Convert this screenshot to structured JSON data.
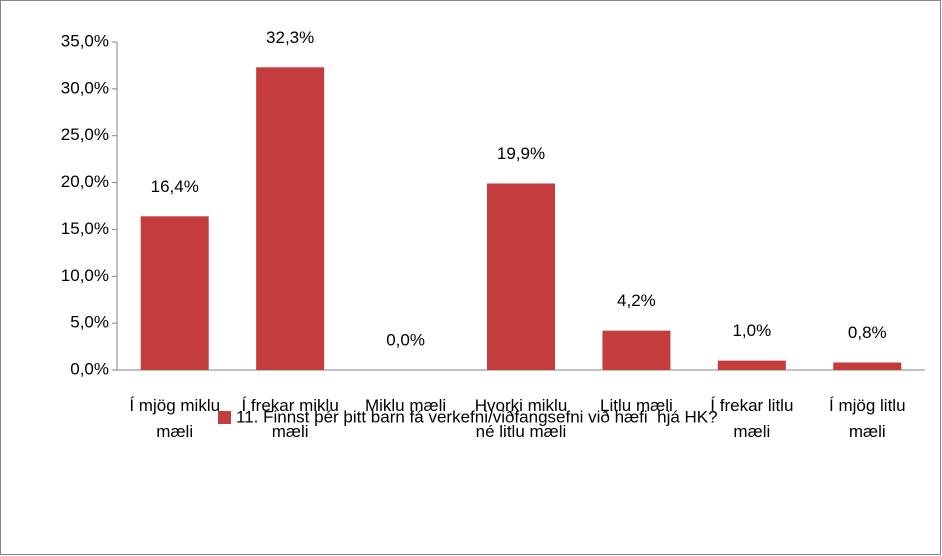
{
  "chart_data": {
    "type": "bar",
    "categories": [
      "Í mjög miklu mæli",
      "Í frekar miklu mæli",
      "Miklu mæli",
      "Hvorki miklu né litlu mæli",
      "Litlu mæli",
      "Í frekar litlu mæli",
      "Í mjög litlu mæli"
    ],
    "series": [
      {
        "name": "11. Finnst þér þitt barn fá verkefni/viðfangsefni við hæfi  hjá HK?",
        "color": "#c43c3c",
        "values": [
          16.4,
          32.3,
          0.0,
          19.9,
          4.2,
          1.0,
          0.8
        ],
        "value_labels": [
          "16,4%",
          "32,3%",
          "0,0%",
          "19,9%",
          "4,2%",
          "1,0%",
          "0,8%"
        ]
      }
    ],
    "ylim": [
      0,
      35
    ],
    "yticks": [
      {
        "value": 0,
        "label": "0,0%"
      },
      {
        "value": 5,
        "label": "5,0%"
      },
      {
        "value": 10,
        "label": "10,0%"
      },
      {
        "value": 15,
        "label": "15,0%"
      },
      {
        "value": 20,
        "label": "20,0%"
      },
      {
        "value": 25,
        "label": "25,0%"
      },
      {
        "value": 30,
        "label": "30,0%"
      },
      {
        "value": 35,
        "label": "35,0%"
      }
    ],
    "legend": "bottom",
    "grid": false
  }
}
